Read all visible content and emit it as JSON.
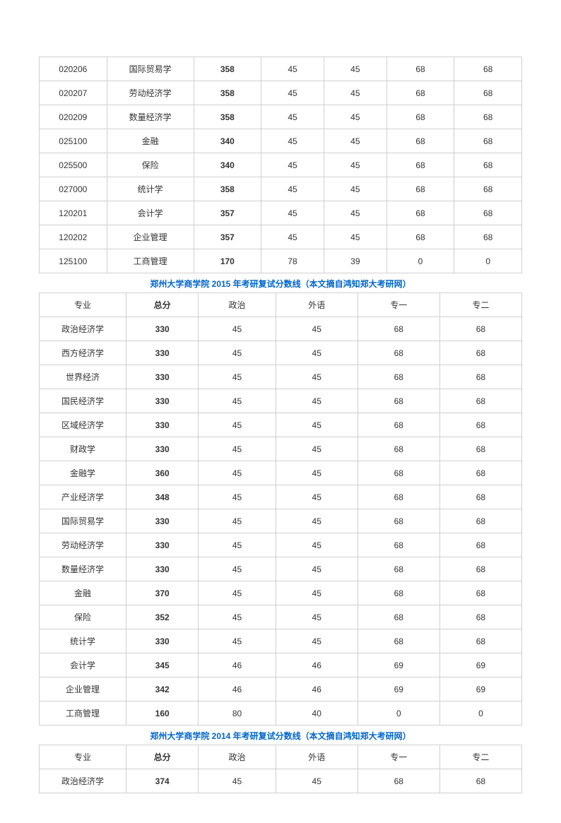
{
  "table1": {
    "rows": [
      [
        "020206",
        "国际贸易学",
        "358",
        "45",
        "45",
        "68",
        "68"
      ],
      [
        "020207",
        "劳动经济学",
        "358",
        "45",
        "45",
        "68",
        "68"
      ],
      [
        "020209",
        "数量经济学",
        "358",
        "45",
        "45",
        "68",
        "68"
      ],
      [
        "025100",
        "金融",
        "340",
        "45",
        "45",
        "68",
        "68"
      ],
      [
        "025500",
        "保险",
        "340",
        "45",
        "45",
        "68",
        "68"
      ],
      [
        "027000",
        "统计学",
        "358",
        "45",
        "45",
        "68",
        "68"
      ],
      [
        "120201",
        "会计学",
        "357",
        "45",
        "45",
        "68",
        "68"
      ],
      [
        "120202",
        "企业管理",
        "357",
        "45",
        "45",
        "68",
        "68"
      ],
      [
        "125100",
        "工商管理",
        "170",
        "78",
        "39",
        "0",
        "0"
      ]
    ]
  },
  "title2015": "郑州大学商学院 2015 年考研复试分数线（本文摘自鸿知郑大考研网）",
  "table2": {
    "header": [
      "专业",
      "总分",
      "政治",
      "外语",
      "专一",
      "专二"
    ],
    "rows": [
      [
        "政治经济学",
        "330",
        "45",
        "45",
        "68",
        "68"
      ],
      [
        "西方经济学",
        "330",
        "45",
        "45",
        "68",
        "68"
      ],
      [
        "世界经济",
        "330",
        "45",
        "45",
        "68",
        "68"
      ],
      [
        "国民经济学",
        "330",
        "45",
        "45",
        "68",
        "68"
      ],
      [
        "区域经济学",
        "330",
        "45",
        "45",
        "68",
        "68"
      ],
      [
        "财政学",
        "330",
        "45",
        "45",
        "68",
        "68"
      ],
      [
        "金融学",
        "360",
        "45",
        "45",
        "68",
        "68"
      ],
      [
        "产业经济学",
        "348",
        "45",
        "45",
        "68",
        "68"
      ],
      [
        "国际贸易学",
        "330",
        "45",
        "45",
        "68",
        "68"
      ],
      [
        "劳动经济学",
        "330",
        "45",
        "45",
        "68",
        "68"
      ],
      [
        "数量经济学",
        "330",
        "45",
        "45",
        "68",
        "68"
      ],
      [
        "金融",
        "370",
        "45",
        "45",
        "68",
        "68"
      ],
      [
        "保险",
        "352",
        "45",
        "45",
        "68",
        "68"
      ],
      [
        "统计学",
        "330",
        "45",
        "45",
        "68",
        "68"
      ],
      [
        "会计学",
        "345",
        "46",
        "46",
        "69",
        "69"
      ],
      [
        "企业管理",
        "342",
        "46",
        "46",
        "69",
        "69"
      ],
      [
        "工商管理",
        "160",
        "80",
        "40",
        "0",
        "0"
      ]
    ]
  },
  "title2014": "郑州大学商学院 2014 年考研复试分数线（本文摘自鸿知郑大考研网）",
  "table3": {
    "header": [
      "专业",
      "总分",
      "政治",
      "外语",
      "专一",
      "专二"
    ],
    "rows": [
      [
        "政治经济学",
        "374",
        "45",
        "45",
        "68",
        "68"
      ]
    ]
  }
}
